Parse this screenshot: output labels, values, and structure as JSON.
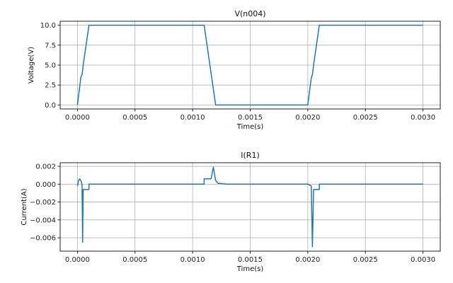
{
  "chart_data": [
    {
      "type": "line",
      "title": "V(n004)",
      "xlabel": "Time(s)",
      "ylabel": "Voltage(V)",
      "xlim": [
        -0.00015,
        0.00315
      ],
      "ylim": [
        -0.5,
        10.5
      ],
      "xticks": [
        0.0,
        0.0005,
        0.001,
        0.0015,
        0.002,
        0.0025,
        0.003
      ],
      "xtick_labels": [
        "0.0000",
        "0.0005",
        "0.0010",
        "0.0015",
        "0.0020",
        "0.0025",
        "0.0030"
      ],
      "yticks": [
        0,
        2.5,
        5,
        7.5,
        10
      ],
      "ytick_labels": [
        "0.0",
        "2.5",
        "5.0",
        "7.5",
        "10.0"
      ],
      "grid": true,
      "color": "#1f77b4",
      "series": [
        {
          "x": [
            0,
            3e-05,
            4e-05,
            5e-05,
            0.0001,
            0.0011,
            0.0012,
            0.002,
            0.00203,
            0.00204,
            0.00205,
            0.0021,
            0.003
          ],
          "y": [
            0,
            3.5,
            3.8,
            5.0,
            10,
            10,
            0,
            0,
            3.4,
            3.8,
            5.0,
            10,
            10
          ]
        }
      ]
    },
    {
      "type": "line",
      "title": "I(R1)",
      "xlabel": "Time(s)",
      "ylabel": "Current(A)",
      "xlim": [
        -0.00015,
        0.00315
      ],
      "ylim": [
        -0.0075,
        0.0024
      ],
      "xticks": [
        0.0,
        0.0005,
        0.001,
        0.0015,
        0.002,
        0.0025,
        0.003
      ],
      "xtick_labels": [
        "0.0000",
        "0.0005",
        "0.0010",
        "0.0015",
        "0.0020",
        "0.0025",
        "0.0030"
      ],
      "yticks": [
        0.002,
        0.0,
        -0.002,
        -0.004,
        -0.006
      ],
      "ytick_labels": [
        "0.002",
        "0.000",
        "−0.002",
        "−0.004",
        "−0.006"
      ],
      "grid": true,
      "color": "#1f77b4",
      "series": [
        {
          "x": [
            0,
            1e-05,
            2e-05,
            3e-05,
            4e-05,
            4.5e-05,
            5e-05,
            0.0001,
            0.0001,
            0.0011,
            0.0011,
            0.00116,
            0.00118,
            0.0012,
            0.00122,
            0.0013,
            0.002,
            0.00203,
            0.00204,
            0.00205,
            0.0021,
            0.0021,
            0.003
          ],
          "y": [
            -0.0002,
            0.0004,
            0.0006,
            0.0004,
            0.0,
            -0.0065,
            -0.0006,
            -0.0006,
            0.0,
            0.0,
            0.0006,
            0.0006,
            0.0019,
            0.0004,
            0.0001,
            0.0,
            0.0,
            -0.0002,
            -0.007,
            -0.0006,
            -0.0006,
            0.0,
            0.0
          ]
        }
      ]
    }
  ]
}
